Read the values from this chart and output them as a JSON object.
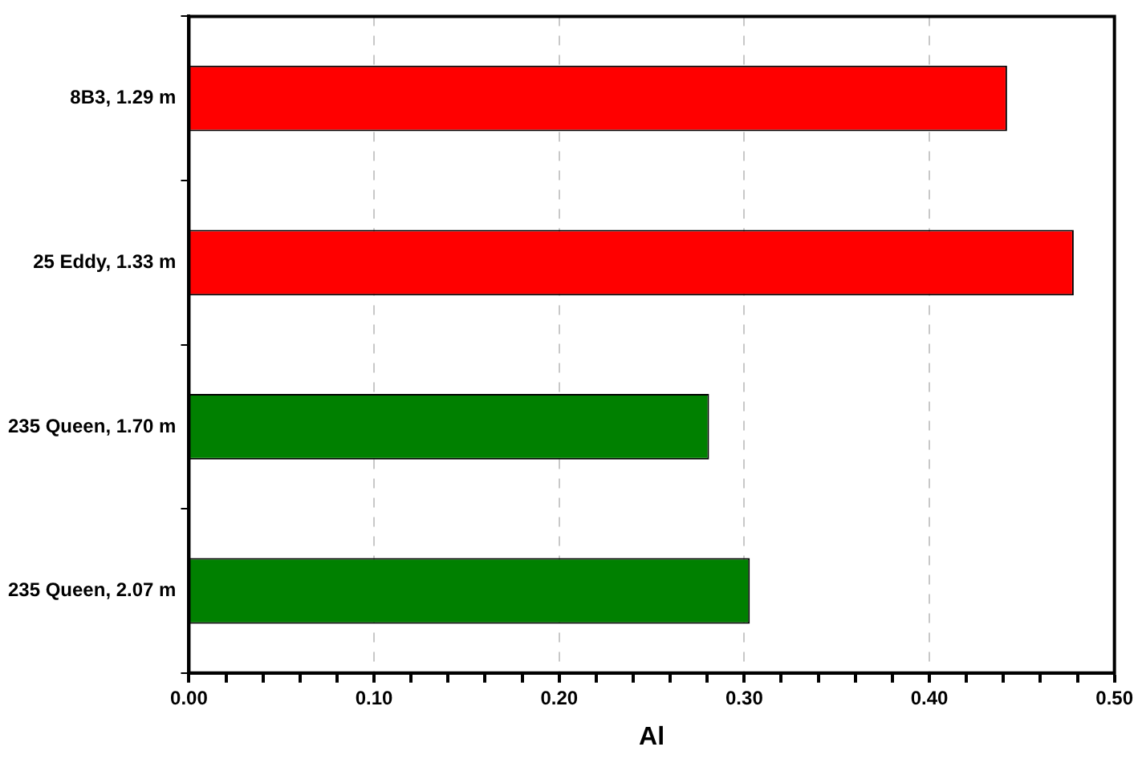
{
  "chart_data": {
    "type": "bar",
    "orientation": "horizontal",
    "xlabel": "Al",
    "categories": [
      "8B3, 1.29 m",
      "25 Eddy, 1.33 m",
      "235 Queen, 1.70 m",
      "235 Queen, 2.07 m"
    ],
    "values": [
      0.442,
      0.478,
      0.281,
      0.303
    ],
    "colors": [
      "#ff0000",
      "#ff0000",
      "#008000",
      "#008000"
    ],
    "xlim": [
      0,
      0.5
    ],
    "xticks": [
      {
        "value": 0,
        "label": "0.00"
      },
      {
        "value": 0.02,
        "label": null
      },
      {
        "value": 0.04,
        "label": null
      },
      {
        "value": 0.06,
        "label": null
      },
      {
        "value": 0.08,
        "label": null
      },
      {
        "value": 0.1,
        "label": "0.10"
      },
      {
        "value": 0.12,
        "label": null
      },
      {
        "value": 0.14,
        "label": null
      },
      {
        "value": 0.16,
        "label": null
      },
      {
        "value": 0.18,
        "label": null
      },
      {
        "value": 0.2,
        "label": "0.20"
      },
      {
        "value": 0.22,
        "label": null
      },
      {
        "value": 0.24,
        "label": null
      },
      {
        "value": 0.26,
        "label": null
      },
      {
        "value": 0.28,
        "label": null
      },
      {
        "value": 0.3,
        "label": "0.30"
      },
      {
        "value": 0.32,
        "label": null
      },
      {
        "value": 0.34,
        "label": null
      },
      {
        "value": 0.36,
        "label": null
      },
      {
        "value": 0.38,
        "label": null
      },
      {
        "value": 0.4,
        "label": "0.40"
      },
      {
        "value": 0.42,
        "label": null
      },
      {
        "value": 0.44,
        "label": null
      },
      {
        "value": 0.46,
        "label": null
      },
      {
        "value": 0.48,
        "label": null
      },
      {
        "value": 0.5,
        "label": "0.50"
      }
    ],
    "grid": "x",
    "legend": false
  }
}
